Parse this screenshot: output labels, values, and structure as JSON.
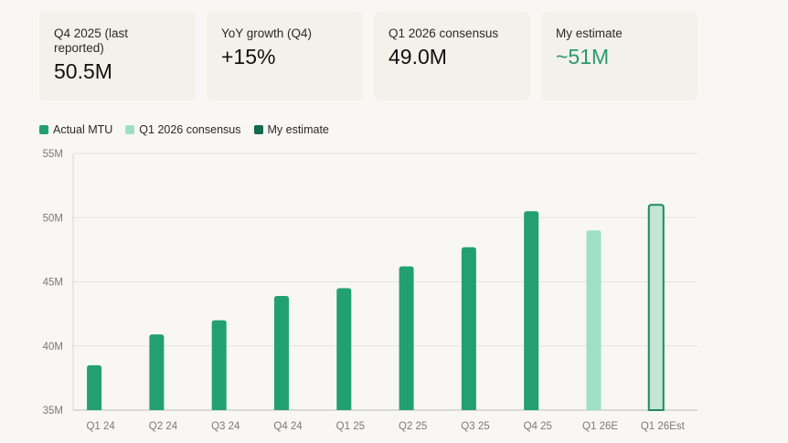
{
  "cards": [
    {
      "label": "Q4 2025 (last reported)",
      "value": "50.5M",
      "accent": false
    },
    {
      "label": "YoY growth (Q4)",
      "value": "+15%",
      "accent": false
    },
    {
      "label": "Q1 2026 consensus",
      "value": "49.0M",
      "accent": false
    },
    {
      "label": "My estimate",
      "value": "~51M",
      "accent": true
    }
  ],
  "colors": {
    "actual": "#22a074",
    "consensus": "#9fe0c4",
    "estimate_fill": "#c3e6d4",
    "estimate_stroke": "#1d8c5f",
    "estimate_swatch": "#136b4b",
    "accent_text": "#2a9a6b"
  },
  "chart_data": {
    "type": "bar",
    "legend": [
      "Actual MTU",
      "Q1 2026 consensus",
      "My estimate"
    ],
    "legend_position": "top-left",
    "categories": [
      "Q1 24",
      "Q2 24",
      "Q3 24",
      "Q4 24",
      "Q1 25",
      "Q2 25",
      "Q3 25",
      "Q4 25",
      "Q1 26E",
      "Q1 26Est"
    ],
    "values": [
      38.5,
      40.9,
      42.0,
      43.9,
      44.5,
      46.2,
      47.7,
      50.5,
      49.0,
      51.0
    ],
    "series_of_bar": [
      "Actual MTU",
      "Actual MTU",
      "Actual MTU",
      "Actual MTU",
      "Actual MTU",
      "Actual MTU",
      "Actual MTU",
      "Actual MTU",
      "Q1 2026 consensus",
      "My estimate"
    ],
    "ylim": [
      35,
      55
    ],
    "yticks": [
      35,
      40,
      45,
      50,
      55
    ],
    "ytick_labels": [
      "35M",
      "40M",
      "45M",
      "50M",
      "55M"
    ],
    "grid": true,
    "title": "",
    "xlabel": "",
    "ylabel": ""
  }
}
